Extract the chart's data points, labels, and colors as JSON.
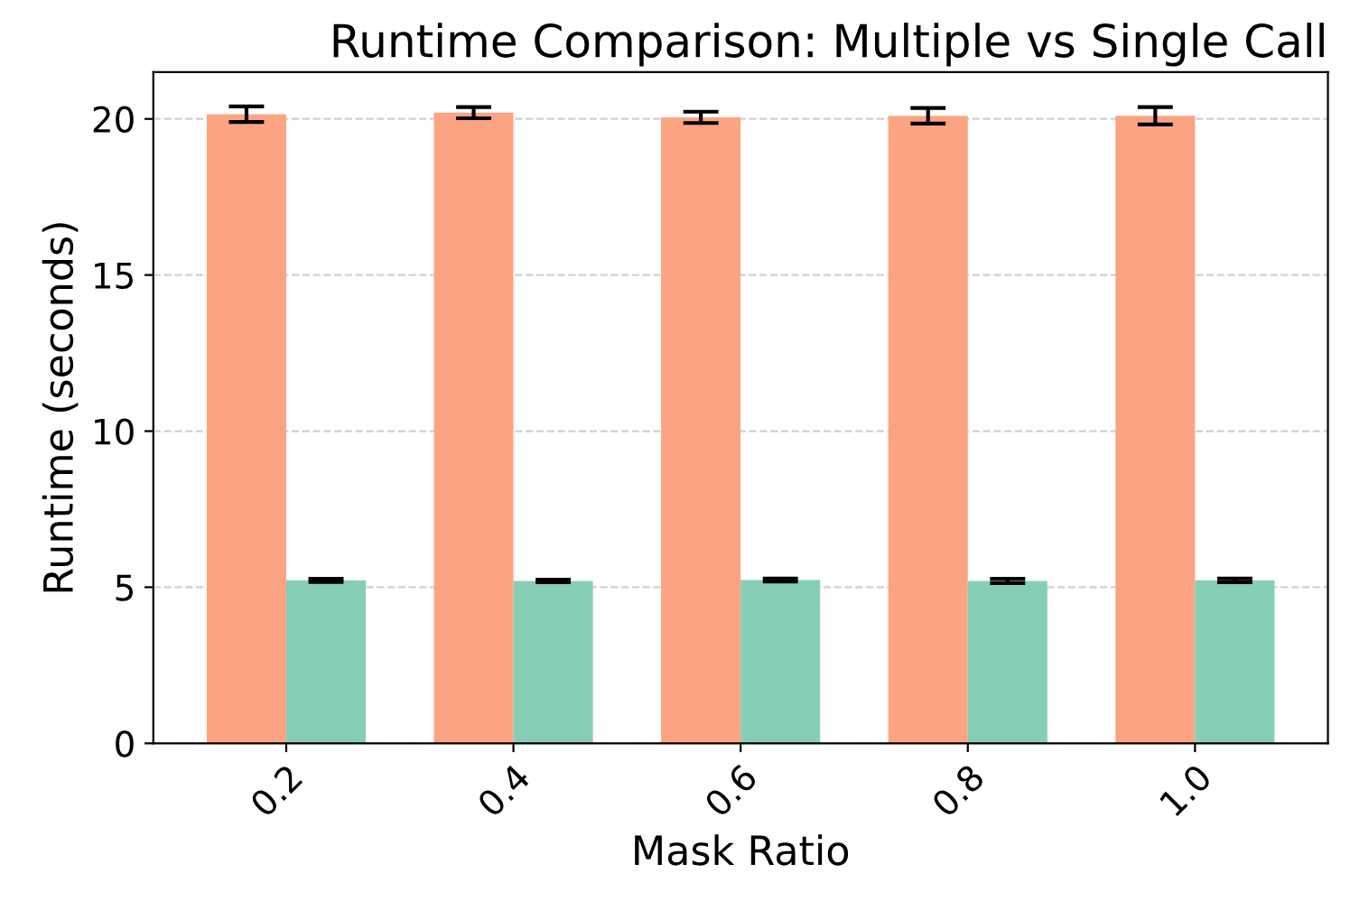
{
  "chart_data": {
    "type": "bar",
    "title": "Runtime Comparison: Multiple vs Single Call",
    "xlabel": "Mask Ratio",
    "ylabel": "Runtime (seconds)",
    "categories": [
      "0.2",
      "0.4",
      "0.6",
      "0.8",
      "1.0"
    ],
    "series": [
      {
        "color": "#fca482",
        "values": [
          20.15,
          20.2,
          20.05,
          20.1,
          20.1
        ],
        "errors": [
          0.25,
          0.18,
          0.18,
          0.25,
          0.28
        ]
      },
      {
        "color": "#86cfb6",
        "values": [
          5.22,
          5.2,
          5.23,
          5.2,
          5.22
        ],
        "errors": [
          0.05,
          0.04,
          0.05,
          0.07,
          0.06
        ]
      }
    ],
    "ylim": [
      0,
      21.5
    ],
    "yticks": [
      0,
      5,
      10,
      15,
      20
    ],
    "grid": "y",
    "legend": false
  }
}
